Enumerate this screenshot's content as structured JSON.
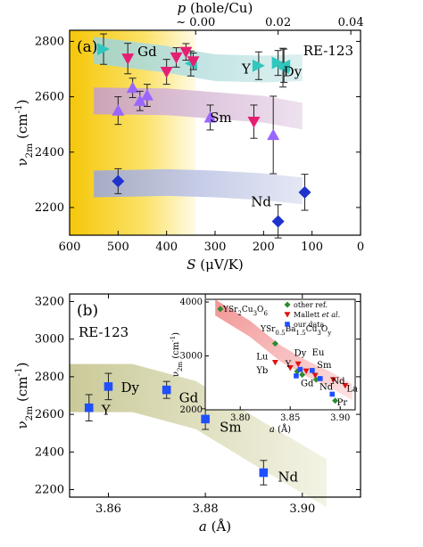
{
  "chart_data": [
    {
      "type": "scatter",
      "panel_label": "(a)",
      "annotation": "RE-123",
      "xlabel_bottom": "S (μV/K)",
      "xlabel_top": "p (hole/Cu)",
      "ylabel": "ν2m (cm-1)",
      "x_reversed": true,
      "xlim": [
        600,
        0
      ],
      "ylim": [
        2100,
        2840
      ],
      "xticks": [
        "600",
        "500",
        "400",
        "300",
        "200",
        "100",
        "0"
      ],
      "yticks": [
        "2200",
        "2400",
        "2600",
        "2800"
      ],
      "top_ticks": [
        {
          "label": "~ 0.00",
          "at_S": 340
        },
        {
          "label": "0.02",
          "at_S": 170
        },
        {
          "label": "0.04",
          "at_S": 20
        }
      ],
      "highlight_region": {
        "x_from": 600,
        "x_to": 340,
        "color_start": "#f5c70a",
        "color_end": "#fffbe0"
      },
      "series": [
        {
          "name": "Y",
          "marker": "triangle-right",
          "color": "#2fc7be",
          "points": [
            [
              530,
              2772
            ],
            [
              210,
              2712
            ],
            [
              170,
              2722
            ]
          ],
          "err": [
            55,
            50,
            45
          ]
        },
        {
          "name": "Dy",
          "marker": "triangle-left",
          "color": "#2fc7be",
          "points": [
            [
              350,
              2720
            ],
            [
              160,
              2705
            ],
            [
              158,
              2712
            ]
          ],
          "err": [
            45,
            70,
            60
          ]
        },
        {
          "name": "Gd",
          "marker": "triangle-down",
          "color": "#e61f73",
          "points": [
            [
              480,
              2738
            ],
            [
              400,
              2690
            ],
            [
              380,
              2742
            ],
            [
              360,
              2762
            ],
            [
              345,
              2728
            ],
            [
              220,
              2510
            ]
          ],
          "err": [
            55,
            45,
            35,
            30,
            30,
            60
          ]
        },
        {
          "name": "Sm",
          "marker": "triangle-up",
          "color": "#9966ff",
          "points": [
            [
              500,
              2550
            ],
            [
              470,
              2632
            ],
            [
              455,
              2585
            ],
            [
              440,
              2605
            ],
            [
              310,
              2525
            ],
            [
              180,
              2462
            ]
          ],
          "err": [
            50,
            35,
            35,
            40,
            45,
            140
          ]
        },
        {
          "name": "Nd",
          "marker": "diamond",
          "color": "#1f33cc",
          "points": [
            [
              500,
              2295
            ],
            [
              170,
              2150
            ],
            [
              115,
              2255
            ]
          ],
          "err": [
            45,
            60,
            65
          ]
        }
      ],
      "bands": [
        {
          "label": "Y",
          "color": "#a7dada",
          "center": [
            [
              550,
              2768
            ],
            [
              400,
              2735
            ],
            [
              300,
              2705
            ],
            [
              200,
              2700
            ],
            [
              120,
              2705
            ]
          ]
        },
        {
          "label": "Sm",
          "color": "#c9a7c9",
          "center": [
            [
              550,
              2585
            ],
            [
              400,
              2582
            ],
            [
              300,
              2568
            ],
            [
              200,
              2555
            ],
            [
              120,
              2530
            ]
          ]
        },
        {
          "label": "Nd",
          "color": "#a7b1d6",
          "center": [
            [
              550,
              2285
            ],
            [
              400,
              2290
            ],
            [
              300,
              2285
            ],
            [
              200,
              2275
            ],
            [
              120,
              2260
            ]
          ]
        }
      ]
    },
    {
      "type": "scatter",
      "panel_label": "(b)",
      "annotation": "RE-123",
      "xlabel": "a (Å)",
      "ylabel": "ν2m (cm-1)",
      "xlim": [
        3.852,
        3.912
      ],
      "ylim": [
        2160,
        3240
      ],
      "xticks": [
        "3.86",
        "3.88",
        "3.90"
      ],
      "yticks": [
        "2200",
        "2400",
        "2600",
        "2800",
        "3000",
        "3200"
      ],
      "series": [
        {
          "name": "our data",
          "marker": "square",
          "color": "#1f4fff",
          "labels": [
            "Y",
            "Dy",
            "Gd",
            "Sm",
            "Nd"
          ],
          "x": [
            3.856,
            3.86,
            3.872,
            3.88,
            3.892
          ],
          "y": [
            2635,
            2748,
            2730,
            2575,
            2290
          ],
          "err": [
            70,
            70,
            45,
            55,
            65
          ]
        }
      ],
      "band_color": "#cccc99",
      "inset": {
        "xlabel": "a (Å)",
        "ylabel": "ν2m (cm-1)",
        "xlim": [
          3.765,
          3.915
        ],
        "ylim": [
          2000,
          4050
        ],
        "xticks": [
          "3.80",
          "3.85",
          "3.90"
        ],
        "yticks": [
          "2000",
          "3000",
          "4000"
        ],
        "legend": [
          "other ref.",
          "Mallett et al.",
          "our data"
        ],
        "compound_labels": [
          "YSr2Cu3O6",
          "YSr0.5Ba1.5Cu3Oy"
        ],
        "series": [
          {
            "name": "other ref.",
            "marker": "diamond",
            "color": "#2e8b2e",
            "x": [
              3.78,
              3.835,
              3.857,
              3.862,
              3.876,
              3.895
            ],
            "y": [
              3870,
              3230,
              2710,
              2650,
              2560,
              2170
            ]
          },
          {
            "name": "Mallett et al.",
            "marker": "triangle-down",
            "color": "#e01010",
            "x": [
              3.835,
              3.85,
              3.858,
              3.866,
              3.875,
              3.893,
              3.905
            ],
            "y": [
              2880,
              2780,
              2850,
              2720,
              2640,
              2560,
              2450
            ]
          },
          {
            "name": "our data",
            "marker": "square",
            "color": "#1f4fff",
            "x": [
              3.856,
              3.86,
              3.872,
              3.88,
              3.892
            ],
            "y": [
              2630,
              2750,
              2730,
              2580,
              2290
            ]
          }
        ],
        "point_labels": [
          {
            "text": "Lu",
            "x": 3.822,
            "y": 2930,
            "color": "#e01010"
          },
          {
            "text": "Yb",
            "x": 3.822,
            "y": 2680,
            "color": "#e01010"
          },
          {
            "text": "Y",
            "x": 3.848,
            "y": 2790,
            "color": "#e01010"
          },
          {
            "text": "Dy",
            "x": 3.86,
            "y": 3000,
            "color": "#e01010"
          },
          {
            "text": "Eu",
            "x": 3.878,
            "y": 3010,
            "color": "#e01010"
          },
          {
            "text": "Sm",
            "x": 3.884,
            "y": 2780,
            "color": "#e01010"
          },
          {
            "text": "Gd",
            "x": 3.867,
            "y": 2440,
            "color": "#e01010"
          },
          {
            "text": "Nd",
            "x": 3.886,
            "y": 2370,
            "color": "#1f4fff"
          },
          {
            "text": "Nd",
            "x": 3.898,
            "y": 2480,
            "color": "#e01010"
          },
          {
            "text": "La",
            "x": 3.912,
            "y": 2340,
            "color": "#e01010"
          },
          {
            "text": "Pr",
            "x": 3.902,
            "y": 2080,
            "color": "#2e8b2e"
          }
        ]
      }
    }
  ]
}
